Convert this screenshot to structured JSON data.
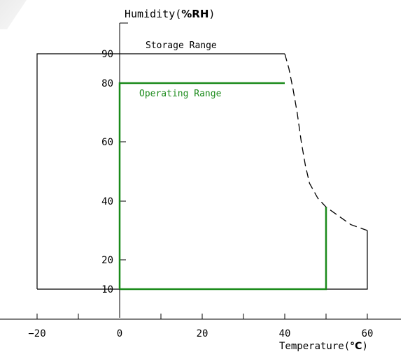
{
  "chart_data": {
    "type": "area",
    "xlabel": {
      "prefix": "Temperature(",
      "unit": "°C",
      "suffix": ")"
    },
    "ylabel": {
      "prefix": "Humidity(",
      "unit": "%RH",
      "suffix": ")"
    },
    "x_ticks": [
      -20,
      0,
      20,
      40,
      60
    ],
    "y_ticks": [
      10,
      20,
      40,
      60,
      80,
      90
    ],
    "xlim": [
      -20,
      60
    ],
    "ylim": [
      10,
      90
    ],
    "series": [
      {
        "name": "Storage Range",
        "color": "#000000",
        "solid": [
          [
            -20,
            10
          ],
          [
            -20,
            90
          ],
          [
            40,
            90
          ]
        ],
        "dashed": [
          [
            40,
            90
          ],
          [
            41,
            85
          ],
          [
            42,
            78
          ],
          [
            43,
            70
          ],
          [
            44,
            60
          ],
          [
            45,
            52
          ],
          [
            46,
            46
          ],
          [
            48,
            41
          ],
          [
            50,
            38
          ],
          [
            53,
            35
          ],
          [
            56,
            32
          ],
          [
            60,
            30
          ]
        ],
        "closing": [
          [
            60,
            30
          ],
          [
            60,
            10
          ],
          [
            -20,
            10
          ]
        ]
      },
      {
        "name": "Operating Range",
        "color": "#1a8a1a",
        "solid": [
          [
            0,
            10
          ],
          [
            0,
            80
          ],
          [
            40,
            80
          ]
        ],
        "closing": [
          [
            50,
            38
          ],
          [
            50,
            10
          ],
          [
            0,
            10
          ]
        ]
      }
    ]
  }
}
